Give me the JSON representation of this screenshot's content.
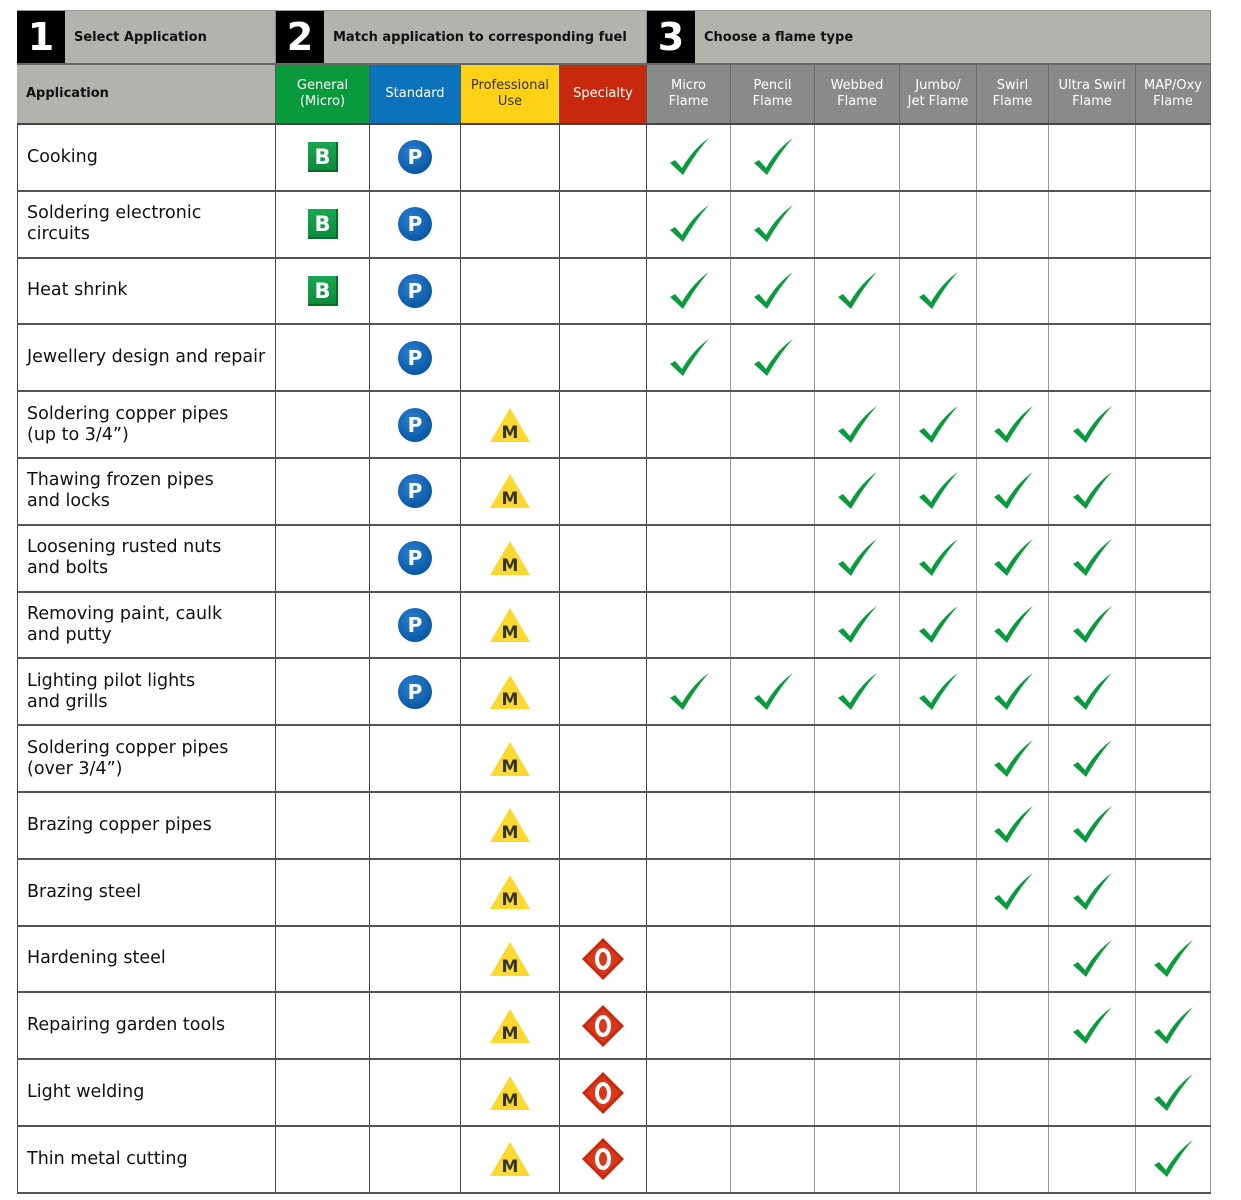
{
  "steps": [
    {
      "num": "1",
      "label": "Select Application"
    },
    {
      "num": "2",
      "label": "Match application to corresponding fuel"
    },
    {
      "num": "3",
      "label": "Choose a flame type"
    }
  ],
  "headers": {
    "application": "Application",
    "fuels": [
      {
        "label": "General\n(Micro)",
        "color": "#0a9a3e",
        "icon": "B"
      },
      {
        "label": "Standard",
        "color": "#0b72bb",
        "icon": "P"
      },
      {
        "label": "Professional\nUse",
        "color": "#fcd116",
        "icon": "M"
      },
      {
        "label": "Specialty",
        "color": "#c8290e",
        "icon": "O"
      }
    ],
    "flames": [
      {
        "label": "Micro\nFlame"
      },
      {
        "label": "Pencil\nFlame"
      },
      {
        "label": "Webbed\nFlame"
      },
      {
        "label": "Jumbo/\nJet Flame"
      },
      {
        "label": "Swirl\nFlame"
      },
      {
        "label": "Ultra Swirl\nFlame"
      },
      {
        "label": "MAP/Oxy\nFlame"
      }
    ],
    "flame_header_color": "#8a8a88"
  },
  "rows": [
    {
      "application": "Cooking",
      "fuels": [
        "B",
        "P",
        "",
        ""
      ],
      "flames": [
        1,
        1,
        0,
        0,
        0,
        0,
        0
      ]
    },
    {
      "application": "Soldering electronic\ncircuits",
      "fuels": [
        "B",
        "P",
        "",
        ""
      ],
      "flames": [
        1,
        1,
        0,
        0,
        0,
        0,
        0
      ]
    },
    {
      "application": "Heat shrink",
      "fuels": [
        "B",
        "P",
        "",
        ""
      ],
      "flames": [
        1,
        1,
        1,
        1,
        0,
        0,
        0
      ]
    },
    {
      "application": "Jewellery design and repair",
      "fuels": [
        "",
        "P",
        "",
        ""
      ],
      "flames": [
        1,
        1,
        0,
        0,
        0,
        0,
        0
      ]
    },
    {
      "application": "Soldering copper pipes\n(up to 3/4”)",
      "fuels": [
        "",
        "P",
        "M",
        ""
      ],
      "flames": [
        0,
        0,
        1,
        1,
        1,
        1,
        0
      ]
    },
    {
      "application": "Thawing frozen pipes\nand locks",
      "fuels": [
        "",
        "P",
        "M",
        ""
      ],
      "flames": [
        0,
        0,
        1,
        1,
        1,
        1,
        0
      ]
    },
    {
      "application": "Loosening rusted nuts\nand bolts",
      "fuels": [
        "",
        "P",
        "M",
        ""
      ],
      "flames": [
        0,
        0,
        1,
        1,
        1,
        1,
        0
      ]
    },
    {
      "application": "Removing paint, caulk\nand putty",
      "fuels": [
        "",
        "P",
        "M",
        ""
      ],
      "flames": [
        0,
        0,
        1,
        1,
        1,
        1,
        0
      ]
    },
    {
      "application": "Lighting pilot lights\nand grills",
      "fuels": [
        "",
        "P",
        "M",
        ""
      ],
      "flames": [
        1,
        1,
        1,
        1,
        1,
        1,
        0
      ]
    },
    {
      "application": "Soldering copper pipes\n(over 3/4”)",
      "fuels": [
        "",
        "",
        "M",
        ""
      ],
      "flames": [
        0,
        0,
        0,
        0,
        1,
        1,
        0
      ]
    },
    {
      "application": "Brazing copper pipes",
      "fuels": [
        "",
        "",
        "M",
        ""
      ],
      "flames": [
        0,
        0,
        0,
        0,
        1,
        1,
        0
      ]
    },
    {
      "application": "Brazing steel",
      "fuels": [
        "",
        "",
        "M",
        ""
      ],
      "flames": [
        0,
        0,
        0,
        0,
        1,
        1,
        0
      ]
    },
    {
      "application": "Hardening steel",
      "fuels": [
        "",
        "",
        "M",
        "O"
      ],
      "flames": [
        0,
        0,
        0,
        0,
        0,
        1,
        1
      ]
    },
    {
      "application": "Repairing garden tools",
      "fuels": [
        "",
        "",
        "M",
        "O"
      ],
      "flames": [
        0,
        0,
        0,
        0,
        0,
        1,
        1
      ]
    },
    {
      "application": "Light welding",
      "fuels": [
        "",
        "",
        "M",
        "O"
      ],
      "flames": [
        0,
        0,
        0,
        0,
        0,
        0,
        1
      ]
    },
    {
      "application": "Thin metal cutting",
      "fuels": [
        "",
        "",
        "M",
        "O"
      ],
      "flames": [
        0,
        0,
        0,
        0,
        0,
        0,
        1
      ]
    }
  ]
}
